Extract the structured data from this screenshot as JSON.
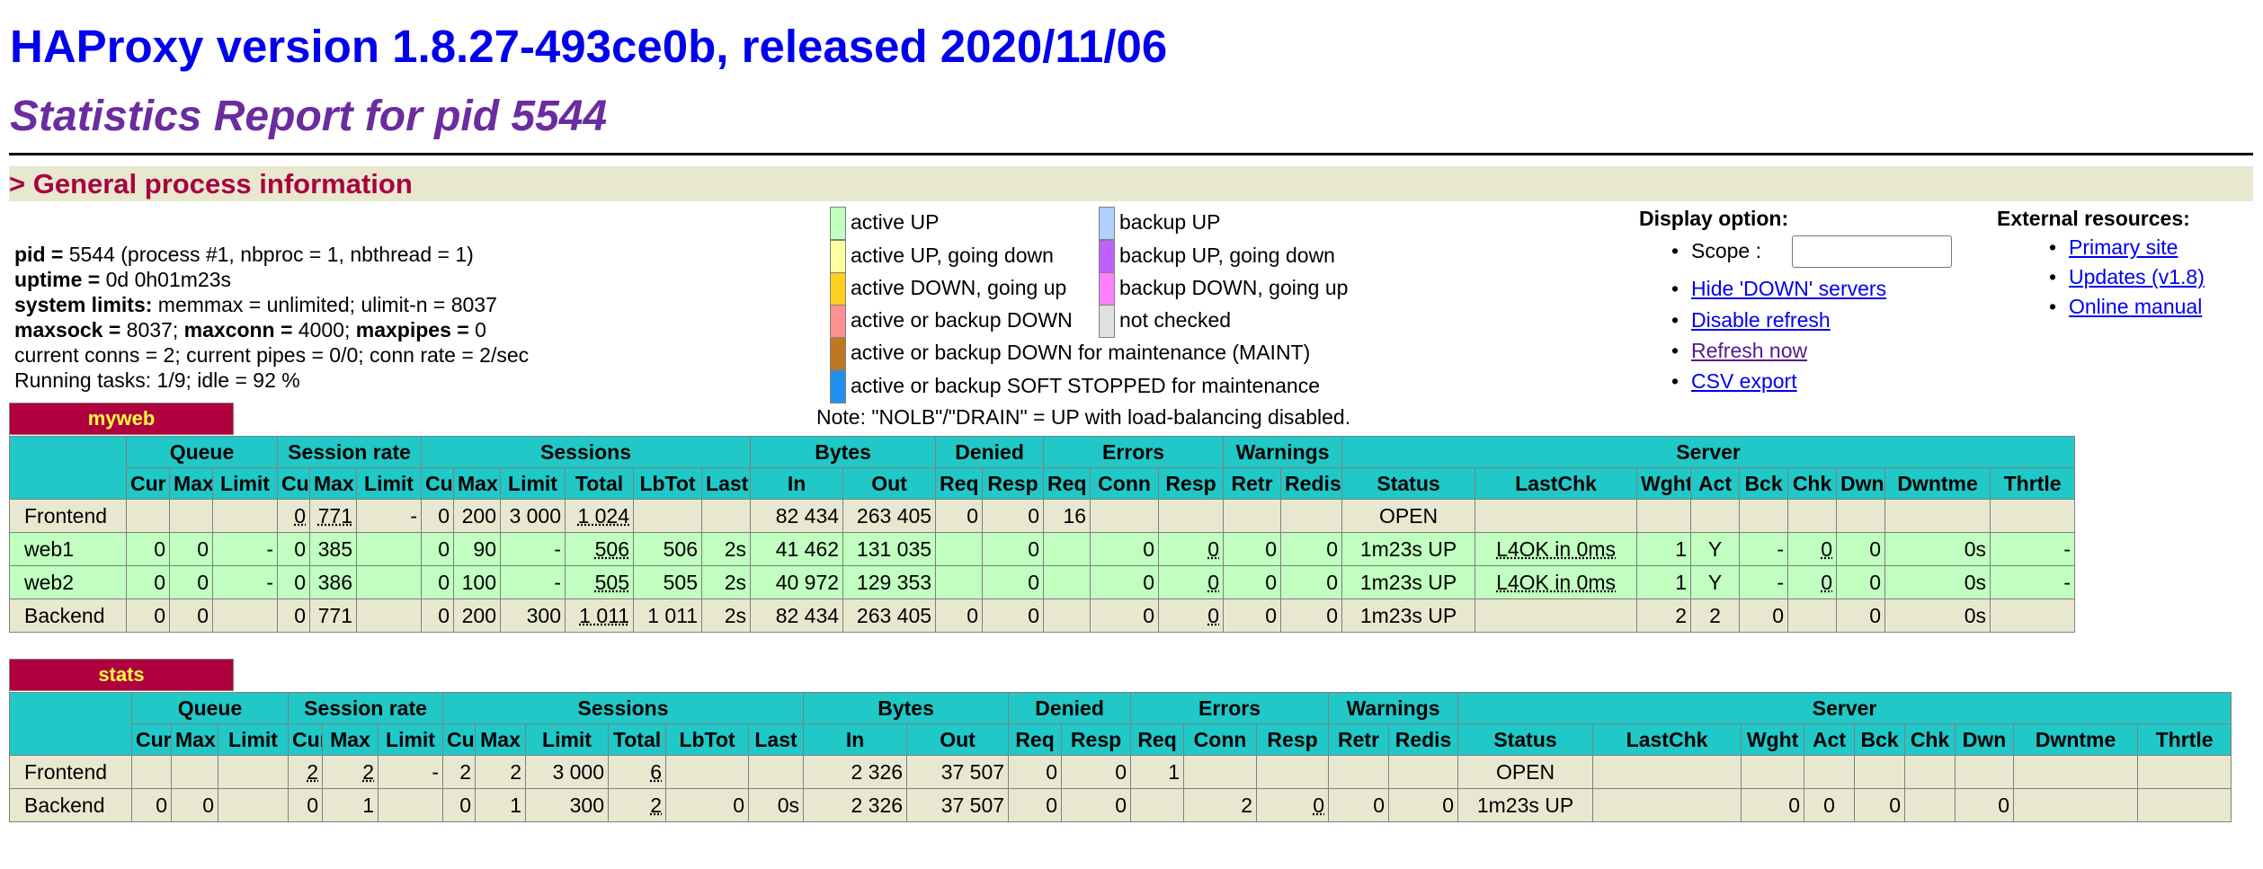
{
  "header": {
    "title": "HAProxy version 1.8.27-493ce0b, released 2020/11/06",
    "subtitle": "Statistics Report for pid 5544"
  },
  "section": "> General process information",
  "process_info": {
    "line1_label": "pid =",
    "line1_rest": " 5544 (process #1, nbproc = 1, nbthread = 1)",
    "line2_label": "uptime =",
    "line2_rest": " 0d 0h01m23s",
    "line3_label": "system limits:",
    "line3_rest": " memmax = unlimited; ulimit-n = 8037",
    "line4_a_label": "maxsock =",
    "line4_a": " 8037; ",
    "line4_b_label": "maxconn =",
    "line4_b": " 4000; ",
    "line4_c_label": "maxpipes =",
    "line4_c": " 0",
    "line5": "current conns = 2; current pipes = 0/0; conn rate = 2/sec",
    "line6": "Running tasks: 1/9; idle = 92 %"
  },
  "legend": {
    "left": [
      {
        "label": "active UP",
        "color": "#c0ffc0"
      },
      {
        "label": "active UP, going down",
        "color": "#ffffa0"
      },
      {
        "label": "active DOWN, going up",
        "color": "#ffd020"
      },
      {
        "label": "active or backup DOWN",
        "color": "#ff9090"
      },
      {
        "label": "active or backup DOWN for maintenance (MAINT)",
        "color": "#c07820"
      },
      {
        "label": "active or backup SOFT STOPPED for maintenance",
        "color": "#2090f0"
      }
    ],
    "right": [
      {
        "label": "backup UP",
        "color": "#b0d0ff"
      },
      {
        "label": "backup UP, going down",
        "color": "#c060ff"
      },
      {
        "label": "backup DOWN, going up",
        "color": "#ff80ff"
      },
      {
        "label": "not checked",
        "color": "#e0e0e0"
      }
    ],
    "note": "Note: \"NOLB\"/\"DRAIN\" = UP with load-balancing disabled."
  },
  "display_option": {
    "heading": "Display option:",
    "scope_label": "Scope :",
    "scope_value": "",
    "hide_down": "Hide 'DOWN' servers",
    "disable_refresh": "Disable refresh",
    "refresh_now": "Refresh now",
    "csv_export": "CSV export"
  },
  "external": {
    "heading": "External resources:",
    "primary": "Primary site",
    "updates": "Updates (v1.8)",
    "manual": "Online manual"
  },
  "groups": [
    "Queue",
    "Session rate",
    "Sessions",
    "Bytes",
    "Denied",
    "Errors",
    "Warnings",
    "Server"
  ],
  "columns": [
    "Cur",
    "Max",
    "Limit",
    "Cur",
    "Max",
    "Limit",
    "Cur",
    "Max",
    "Limit",
    "Total",
    "LbTot",
    "Last",
    "In",
    "Out",
    "Req",
    "Resp",
    "Req",
    "Conn",
    "Resp",
    "Retr",
    "Redis",
    "Status",
    "LastChk",
    "Wght",
    "Act",
    "Bck",
    "Chk",
    "Dwn",
    "Dwntme",
    "Thrtle"
  ],
  "proxies": [
    {
      "name": "myweb",
      "rows": [
        {
          "kind": "fe",
          "name": "Frontend",
          "cells": [
            "",
            "",
            "",
            "0",
            "771",
            "-",
            "0",
            "200",
            "3 000",
            "1 024",
            "",
            "",
            "82 434",
            "263 405",
            "0",
            "0",
            "16",
            "",
            "",
            "",
            "",
            "OPEN",
            "",
            "",
            "",
            "",
            "",
            "",
            "",
            ""
          ]
        },
        {
          "kind": "up",
          "name": "web1",
          "cells": [
            "0",
            "0",
            "-",
            "0",
            "385",
            "",
            "0",
            "90",
            "-",
            "506",
            "506",
            "2s",
            "41 462",
            "131 035",
            "",
            "0",
            "",
            "0",
            "0",
            "0",
            "0",
            "1m23s UP",
            "L4OK in 0ms",
            "1",
            "Y",
            "-",
            "0",
            "0",
            "0s",
            "-"
          ]
        },
        {
          "kind": "up",
          "name": "web2",
          "cells": [
            "0",
            "0",
            "-",
            "0",
            "386",
            "",
            "0",
            "100",
            "-",
            "505",
            "505",
            "2s",
            "40 972",
            "129 353",
            "",
            "0",
            "",
            "0",
            "0",
            "0",
            "0",
            "1m23s UP",
            "L4OK in 0ms",
            "1",
            "Y",
            "-",
            "0",
            "0",
            "0s",
            "-"
          ]
        },
        {
          "kind": "be",
          "name": "Backend",
          "cells": [
            "0",
            "0",
            "",
            "0",
            "771",
            "",
            "0",
            "200",
            "300",
            "1 011",
            "1 011",
            "2s",
            "82 434",
            "263 405",
            "0",
            "0",
            "",
            "0",
            "0",
            "0",
            "0",
            "1m23s UP",
            "",
            "2",
            "2",
            "0",
            "",
            "0",
            "0s",
            ""
          ]
        }
      ]
    },
    {
      "name": "stats",
      "rows": [
        {
          "kind": "fe",
          "name": "Frontend",
          "cells": [
            "",
            "",
            "",
            "2",
            "2",
            "-",
            "2",
            "2",
            "3 000",
            "6",
            "",
            "",
            "2 326",
            "37 507",
            "0",
            "0",
            "1",
            "",
            "",
            "",
            "",
            "OPEN",
            "",
            "",
            "",
            "",
            "",
            "",
            "",
            ""
          ]
        },
        {
          "kind": "be",
          "name": "Backend",
          "cells": [
            "0",
            "0",
            "",
            "0",
            "1",
            "",
            "0",
            "1",
            "300",
            "2",
            "0",
            "0s",
            "2 326",
            "37 507",
            "0",
            "0",
            "",
            "2",
            "0",
            "0",
            "0",
            "1m23s UP",
            "",
            "0",
            "0",
            "0",
            "",
            "0",
            "",
            ""
          ]
        }
      ]
    }
  ]
}
